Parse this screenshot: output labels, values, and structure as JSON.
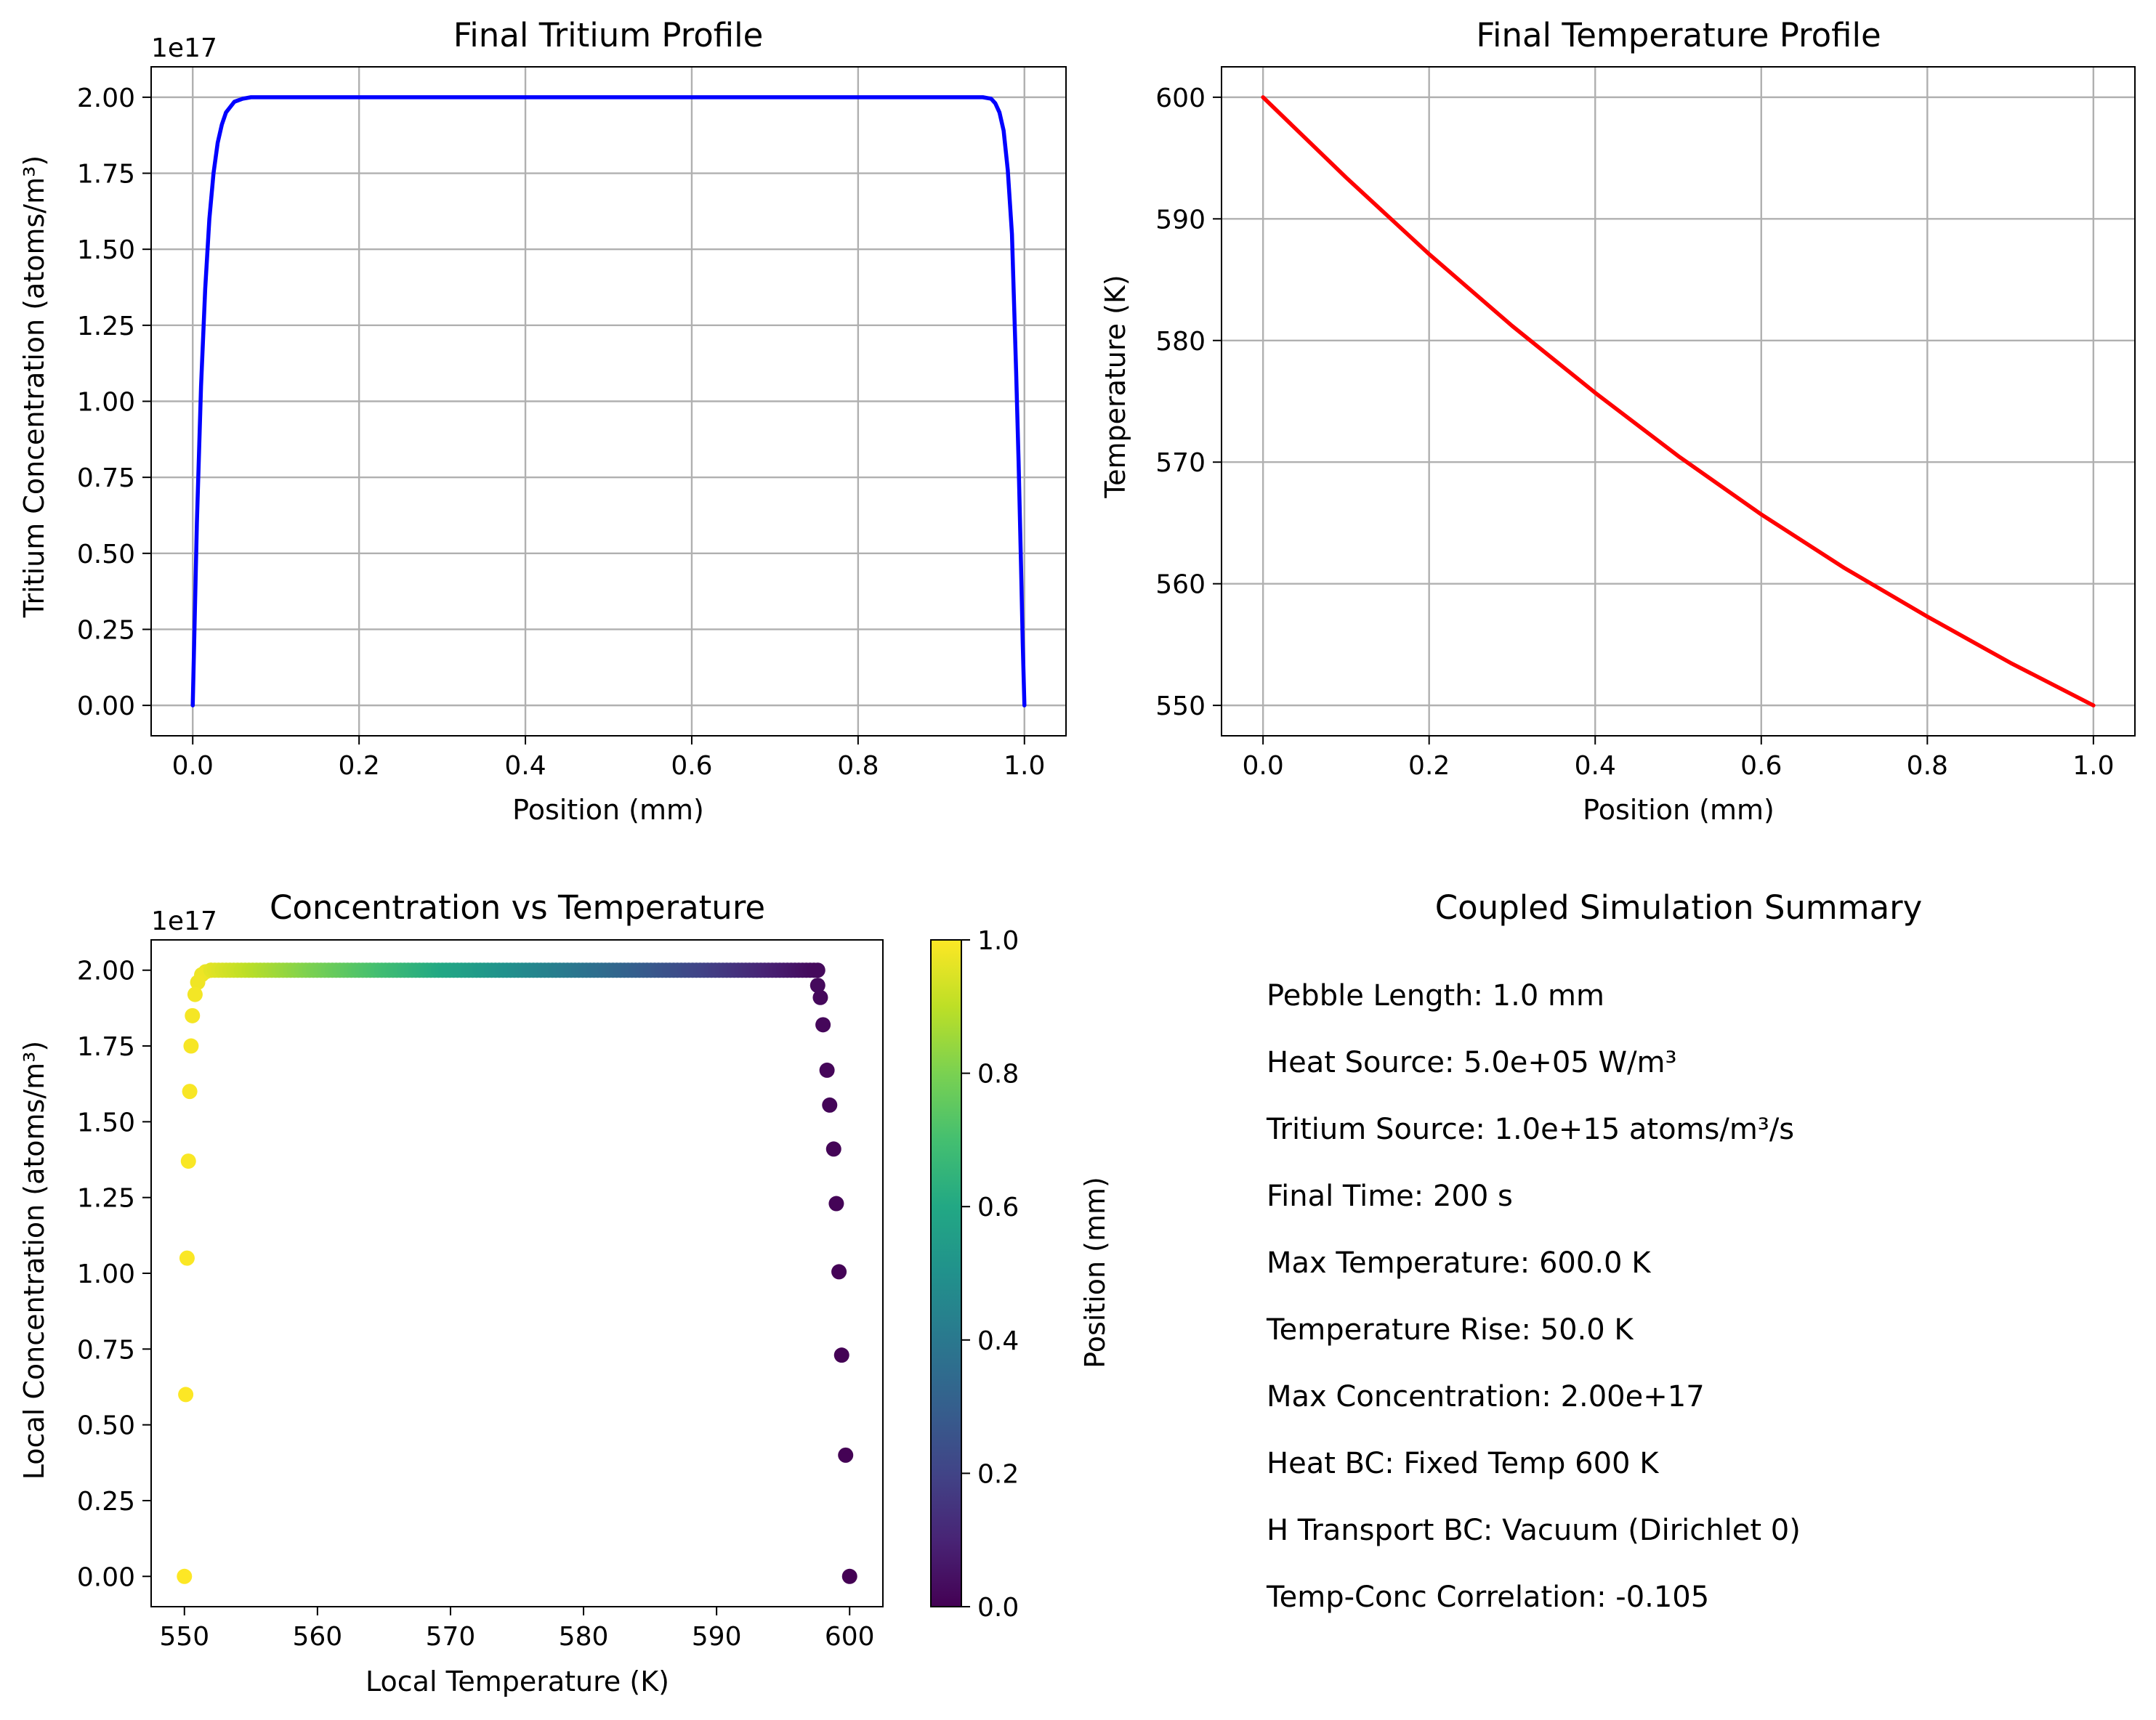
{
  "chart_data": [
    {
      "id": "tritium",
      "type": "line",
      "title": "Final Tritium Profile",
      "xlabel": "Position (mm)",
      "ylabel": "Tritium Concentration (atoms/m³)",
      "offset_text": "1e17",
      "xlim": [
        -0.05,
        1.05
      ],
      "ylim": [
        -0.1,
        2.1
      ],
      "xticks": [
        0.0,
        0.2,
        0.4,
        0.6,
        0.8,
        1.0
      ],
      "xtick_labels": [
        "0.0",
        "0.2",
        "0.4",
        "0.6",
        "0.8",
        "1.0"
      ],
      "yticks": [
        0.0,
        0.25,
        0.5,
        0.75,
        1.0,
        1.25,
        1.5,
        1.75,
        2.0
      ],
      "ytick_labels": [
        "0.00",
        "0.25",
        "0.50",
        "0.75",
        "1.00",
        "1.25",
        "1.50",
        "1.75",
        "2.00"
      ],
      "grid": true,
      "series": [
        {
          "color": "#0000ff",
          "x": [
            0.0,
            0.005,
            0.01,
            0.015,
            0.02,
            0.025,
            0.03,
            0.035,
            0.04,
            0.05,
            0.06,
            0.07,
            0.08,
            0.1,
            0.5,
            0.9,
            0.92,
            0.93,
            0.94,
            0.95,
            0.96,
            0.965,
            0.97,
            0.975,
            0.98,
            0.985,
            0.99,
            0.993,
            0.996,
            0.998,
            1.0
          ],
          "y": [
            0.0,
            0.6,
            1.05,
            1.37,
            1.6,
            1.75,
            1.85,
            1.91,
            1.95,
            1.985,
            1.995,
            2.0,
            2.0,
            2.0,
            2.0,
            2.0,
            2.0,
            2.0,
            2.0,
            2.0,
            1.995,
            1.98,
            1.95,
            1.89,
            1.76,
            1.55,
            1.1,
            0.8,
            0.45,
            0.2,
            0.0
          ]
        }
      ]
    },
    {
      "id": "temperature",
      "type": "line",
      "title": "Final Temperature Profile",
      "xlabel": "Position (mm)",
      "ylabel": "Temperature (K)",
      "xlim": [
        -0.05,
        1.05
      ],
      "ylim": [
        547.5,
        602.5
      ],
      "xticks": [
        0.0,
        0.2,
        0.4,
        0.6,
        0.8,
        1.0
      ],
      "xtick_labels": [
        "0.0",
        "0.2",
        "0.4",
        "0.6",
        "0.8",
        "1.0"
      ],
      "yticks": [
        550,
        560,
        570,
        580,
        590,
        600
      ],
      "ytick_labels": [
        "550",
        "560",
        "570",
        "580",
        "590",
        "600"
      ],
      "grid": true,
      "series": [
        {
          "color": "#ff0000",
          "x": [
            0.0,
            0.1,
            0.2,
            0.3,
            0.4,
            0.5,
            0.6,
            0.7,
            0.8,
            0.9,
            1.0
          ],
          "y": [
            600.0,
            593.4,
            587.1,
            581.2,
            575.7,
            570.5,
            565.7,
            561.3,
            557.3,
            553.5,
            550.0
          ]
        }
      ]
    },
    {
      "id": "scatter",
      "type": "scatter",
      "title": "Concentration vs Temperature",
      "xlabel": "Local Temperature (K)",
      "ylabel": "Local Concentration (atoms/m³)",
      "offset_text": "1e17",
      "xlim": [
        547.5,
        602.5
      ],
      "ylim": [
        -0.1,
        2.1
      ],
      "xticks": [
        550,
        560,
        570,
        580,
        590,
        600
      ],
      "xtick_labels": [
        "550",
        "560",
        "570",
        "580",
        "590",
        "600"
      ],
      "yticks": [
        0.0,
        0.25,
        0.5,
        0.75,
        1.0,
        1.25,
        1.5,
        1.75,
        2.0
      ],
      "ytick_labels": [
        "0.00",
        "0.25",
        "0.50",
        "0.75",
        "1.00",
        "1.25",
        "1.50",
        "1.75",
        "2.00"
      ],
      "grid": false,
      "colormap": "viridis",
      "colorbar": {
        "label": "Position (mm)",
        "range": [
          0.0,
          1.0
        ],
        "ticks": [
          0.0,
          0.2,
          0.4,
          0.6,
          0.8,
          1.0
        ],
        "tick_labels": [
          "0.0",
          "0.2",
          "0.4",
          "0.6",
          "0.8",
          "1.0"
        ]
      },
      "points": [
        {
          "x": 550.0,
          "y": 0.0,
          "c": 1.0
        },
        {
          "x": 550.1,
          "y": 0.6,
          "c": 0.998
        },
        {
          "x": 550.2,
          "y": 1.05,
          "c": 0.996
        },
        {
          "x": 550.3,
          "y": 1.37,
          "c": 0.994
        },
        {
          "x": 550.4,
          "y": 1.6,
          "c": 0.992
        },
        {
          "x": 550.5,
          "y": 1.75,
          "c": 0.99
        },
        {
          "x": 550.6,
          "y": 1.85,
          "c": 0.988
        },
        {
          "x": 550.8,
          "y": 1.92,
          "c": 0.985
        },
        {
          "x": 551.0,
          "y": 1.96,
          "c": 0.98
        },
        {
          "x": 551.3,
          "y": 1.985,
          "c": 0.975
        },
        {
          "x": 551.6,
          "y": 1.995,
          "c": 0.97
        },
        {
          "x": 552.0,
          "y": 2.0,
          "c": 0.96
        },
        {
          "x": 597.6,
          "y": 1.95,
          "c": 0.025
        },
        {
          "x": 597.8,
          "y": 1.91,
          "c": 0.02
        },
        {
          "x": 598.0,
          "y": 1.82,
          "c": 0.017
        },
        {
          "x": 598.3,
          "y": 1.67,
          "c": 0.014
        },
        {
          "x": 598.5,
          "y": 1.555,
          "c": 0.012
        },
        {
          "x": 598.8,
          "y": 1.41,
          "c": 0.01
        },
        {
          "x": 599.0,
          "y": 1.23,
          "c": 0.008
        },
        {
          "x": 599.2,
          "y": 1.005,
          "c": 0.006
        },
        {
          "x": 599.4,
          "y": 0.73,
          "c": 0.004
        },
        {
          "x": 599.7,
          "y": 0.4,
          "c": 0.002
        },
        {
          "x": 600.0,
          "y": 0.0,
          "c": 0.0
        }
      ]
    }
  ],
  "summary": {
    "title": "Coupled Simulation Summary",
    "lines": [
      "Pebble Length: 1.0 mm",
      "Heat Source: 5.0e+05 W/m³",
      "Tritium Source: 1.0e+15 atoms/m³/s",
      "Final Time: 200 s",
      "Max Temperature: 600.0 K",
      "Temperature Rise: 50.0 K",
      "Max Concentration: 2.00e+17",
      "Heat BC: Fixed Temp 600 K",
      "H Transport BC: Vacuum (Dirichlet 0)",
      "Temp-Conc Correlation: -0.105"
    ]
  }
}
